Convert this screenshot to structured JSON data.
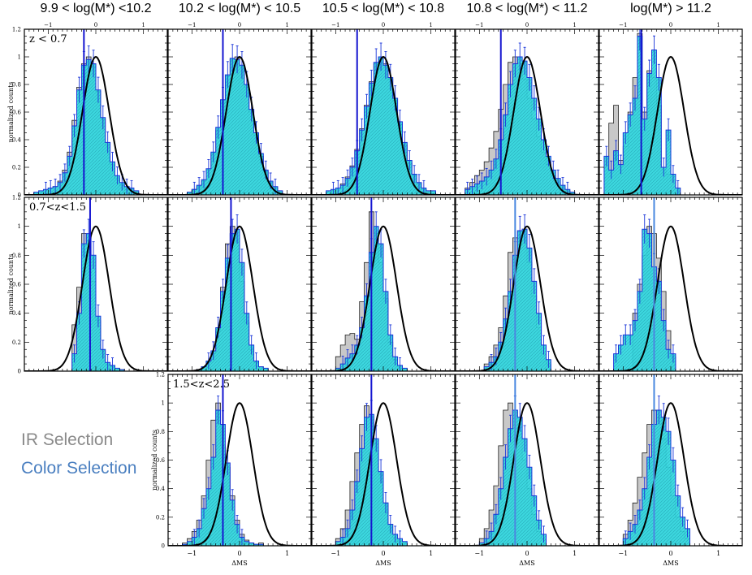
{
  "colors": {
    "ir_fill": "#c8c8c8",
    "ir_edge": "#222222",
    "color_fill": "#30d8e0",
    "color_edge": "#1a35d8",
    "fit_line": "#000000",
    "marker_blue": "#1515d0",
    "marker_light": "#4a88e0",
    "legend_ir": "#8a8a8a",
    "legend_color": "#4a7fc0"
  },
  "chart_data": {
    "type": "bar",
    "title": "",
    "xlabel": "ΔMS",
    "ylabel": "normalized counts",
    "xlim": [
      -1.5,
      1.5
    ],
    "ylim": [
      0,
      1.2
    ],
    "xticks": [
      -1,
      0,
      1
    ],
    "yticks": [
      0,
      0.2,
      0.4,
      0.6,
      0.8,
      1,
      1.2
    ],
    "bin_width": 0.1,
    "gaussian_sigma": 0.28,
    "column_titles": [
      "9.9 < log(M*) <10.2",
      "10.2 < log(M*) < 10.5",
      "10.5 < log(M*) < 10.8",
      "10.8 < log(M*) < 11.2",
      "log(M*) > 11.2"
    ],
    "legend": {
      "ir": "IR Selection",
      "color": "Color Selection"
    },
    "rows": [
      {
        "label": "z < 0.7",
        "panels": [
          {
            "marker": -0.25,
            "marker_style": "blue",
            "ir_start": -1.3,
            "ir": [
              0.01,
              0.02,
              0.03,
              0.05,
              0.06,
              0.1,
              0.18,
              0.31,
              0.54,
              0.78,
              0.95,
              1.0,
              0.93,
              0.75,
              0.55,
              0.36,
              0.22,
              0.12,
              0.07,
              0.04,
              0.03,
              0.02
            ],
            "color_start": -1.3,
            "color": [
              0.02,
              0.03,
              0.04,
              0.05,
              0.06,
              0.09,
              0.16,
              0.28,
              0.5,
              0.76,
              0.94,
              0.98,
              0.95,
              0.76,
              0.56,
              0.38,
              0.24,
              0.14,
              0.09,
              0.06,
              0.05,
              0.03
            ]
          },
          {
            "marker": -0.35,
            "marker_style": "blue",
            "ir_start": -1.1,
            "ir": [
              0.02,
              0.04,
              0.06,
              0.1,
              0.18,
              0.3,
              0.47,
              0.67,
              0.86,
              0.98,
              1.0,
              0.93,
              0.78,
              0.6,
              0.43,
              0.28,
              0.17,
              0.09,
              0.05,
              0.03
            ],
            "color_start": -1.1,
            "color": [
              0.02,
              0.04,
              0.07,
              0.11,
              0.19,
              0.31,
              0.49,
              0.69,
              0.87,
              0.99,
              0.98,
              0.94,
              0.8,
              0.62,
              0.45,
              0.3,
              0.18,
              0.1,
              0.06,
              0.03
            ]
          },
          {
            "marker": -0.55,
            "marker_style": "blue",
            "ir_start": -1.2,
            "ir": [
              0.02,
              0.03,
              0.05,
              0.08,
              0.13,
              0.21,
              0.33,
              0.48,
              0.65,
              0.82,
              0.95,
              1.0,
              0.95,
              0.84,
              0.68,
              0.51,
              0.36,
              0.23,
              0.14,
              0.08,
              0.04,
              0.02,
              0.01
            ],
            "color_start": -1.2,
            "color": [
              0.03,
              0.04,
              0.05,
              0.07,
              0.12,
              0.2,
              0.32,
              0.47,
              0.64,
              0.81,
              0.96,
              1.0,
              0.94,
              0.85,
              0.7,
              0.53,
              0.38,
              0.25,
              0.15,
              0.09,
              0.05,
              0.03,
              0.03
            ]
          },
          {
            "marker": -0.55,
            "marker_style": "blue",
            "ir_start": -1.3,
            "ir": [
              0.05,
              0.09,
              0.14,
              0.18,
              0.24,
              0.34,
              0.46,
              0.62,
              0.8,
              0.96,
              1.0,
              0.95,
              0.84,
              0.7,
              0.55,
              0.42,
              0.31,
              0.22,
              0.14,
              0.09,
              0.05,
              0.03,
              0.02
            ],
            "color_start": -1.3,
            "color": [
              0.04,
              0.06,
              0.08,
              0.1,
              0.13,
              0.18,
              0.26,
              0.4,
              0.58,
              0.8,
              0.95,
              1.0,
              0.97,
              0.85,
              0.7,
              0.55,
              0.4,
              0.28,
              0.18,
              0.12,
              0.07,
              0.04,
              0.02
            ]
          },
          {
            "marker": -0.62,
            "marker_style": "blue",
            "ir_start": -1.4,
            "ir": [
              0.28,
              0.52,
              0.65,
              0.25,
              0.35,
              0.6,
              0.85,
              1.17,
              0.6,
              0.9,
              0.85,
              0.65,
              0.2,
              0.15,
              0.1,
              0.05
            ],
            "color_start": -1.4,
            "color": [
              0.28,
              0.18,
              0.32,
              0.22,
              0.45,
              0.58,
              0.7,
              1.15,
              0.55,
              0.88,
              1.05,
              0.85,
              0.2,
              0.47,
              0.15,
              0.05
            ]
          }
        ]
      },
      {
        "label": "0.7<z<1.5",
        "panels": [
          {
            "marker": -0.12,
            "marker_style": "blue",
            "ir_start": -0.5,
            "ir": [
              0.32,
              0.58,
              0.95,
              0.9,
              0.62,
              0.35,
              0.14,
              0.05,
              0.03,
              0.02,
              0.01
            ],
            "color_start": -0.5,
            "color": [
              0.12,
              0.4,
              0.88,
              0.95,
              0.8,
              0.38,
              0.15,
              0.06,
              0.04,
              0.02,
              0.01
            ]
          },
          {
            "marker": -0.18,
            "marker_style": "blue",
            "ir_start": -0.9,
            "ir": [
              0.01,
              0.03,
              0.06,
              0.12,
              0.28,
              0.58,
              0.88,
              1.0,
              0.9,
              0.62,
              0.34,
              0.15,
              0.06,
              0.03,
              0.02
            ],
            "color_start": -0.9,
            "color": [
              0.01,
              0.03,
              0.07,
              0.14,
              0.3,
              0.55,
              0.78,
              0.95,
              0.98,
              0.75,
              0.4,
              0.18,
              0.07,
              0.03,
              0.02
            ]
          },
          {
            "marker": -0.25,
            "marker_style": "blue",
            "ir_start": -1.0,
            "ir": [
              0.1,
              0.18,
              0.25,
              0.26,
              0.22,
              0.48,
              0.75,
              1.1,
              0.95,
              0.75,
              0.5,
              0.2,
              0.08,
              0.03,
              0.02
            ],
            "color_start": -1.0,
            "color": [
              0.02,
              0.05,
              0.09,
              0.12,
              0.18,
              0.3,
              0.52,
              0.82,
              1.0,
              0.88,
              0.55,
              0.25,
              0.1,
              0.04,
              0.02
            ]
          },
          {
            "marker": -0.25,
            "marker_style": "light",
            "ir_start": -0.9,
            "ir": [
              0.05,
              0.1,
              0.18,
              0.3,
              0.52,
              0.82,
              0.92,
              0.97,
              0.98,
              0.75,
              0.52,
              0.3,
              0.12,
              0.05
            ],
            "color_start": -0.9,
            "color": [
              0.03,
              0.06,
              0.1,
              0.2,
              0.36,
              0.55,
              0.8,
              0.97,
              0.98,
              0.85,
              0.62,
              0.4,
              0.18,
              0.08
            ]
          },
          {
            "marker": -0.35,
            "marker_style": "light",
            "ir_start": -0.8,
            "ir": [
              0.4,
              0.6,
              0.8,
              1.0,
              0.95,
              0.78,
              0.55,
              0.28,
              0.1
            ],
            "color_start": -1.2,
            "color": [
              0.12,
              0.18,
              0.25,
              0.25,
              0.35,
              0.55,
              0.98,
              0.95,
              0.72,
              0.62,
              0.35,
              0.15,
              0.12
            ]
          }
        ]
      },
      {
        "label": "1.5<z<2.5",
        "panels": [
          {
            "marker": -0.35,
            "marker_style": "blue",
            "ir_start": -1.2,
            "ir": [
              0.02,
              0.05,
              0.1,
              0.18,
              0.35,
              0.6,
              0.88,
              1.0,
              0.7,
              0.55,
              0.35,
              0.18,
              0.08,
              0.04,
              0.02,
              0.01,
              0.02
            ],
            "color_start": -1.2,
            "color": [
              0.01,
              0.03,
              0.06,
              0.12,
              0.26,
              0.4,
              0.62,
              0.95,
              0.85,
              0.58,
              0.32,
              0.15,
              0.06,
              0.03,
              0.02,
              0.01,
              0.01
            ]
          },
          {
            "marker": -0.25,
            "marker_style": "blue",
            "ir_start": -1.0,
            "ir": [
              0.05,
              0.12,
              0.25,
              0.45,
              0.65,
              0.85,
              0.98,
              0.9,
              0.72,
              0.5,
              0.3,
              0.15,
              0.06,
              0.03,
              0.02
            ],
            "color_start": -1.0,
            "color": [
              0.03,
              0.06,
              0.12,
              0.25,
              0.45,
              0.68,
              0.9,
              0.92,
              0.75,
              0.52,
              0.3,
              0.15,
              0.08,
              0.05,
              0.03
            ]
          },
          {
            "marker": -0.25,
            "marker_style": "light",
            "ir_start": -1.0,
            "ir": [
              0.05,
              0.12,
              0.25,
              0.42,
              0.7,
              0.95,
              1.0,
              0.95,
              0.8,
              0.6,
              0.4,
              0.22,
              0.1,
              0.05
            ],
            "color_start": -1.0,
            "color": [
              0.02,
              0.05,
              0.1,
              0.22,
              0.4,
              0.62,
              0.82,
              0.95,
              0.9,
              0.75,
              0.55,
              0.35,
              0.18,
              0.08
            ]
          },
          {
            "marker": -0.35,
            "marker_style": "light",
            "ir_start": -1.0,
            "ir": [
              0.08,
              0.18,
              0.3,
              0.48,
              0.65,
              0.85,
              0.95,
              0.9,
              0.75,
              0.55,
              0.35,
              0.2,
              0.1,
              0.05
            ],
            "color_start": -1.0,
            "color": [
              0.05,
              0.1,
              0.15,
              0.25,
              0.4,
              0.62,
              0.85,
              0.95,
              0.9,
              0.8,
              0.6,
              0.35,
              0.2,
              0.12
            ]
          }
        ]
      }
    ]
  }
}
